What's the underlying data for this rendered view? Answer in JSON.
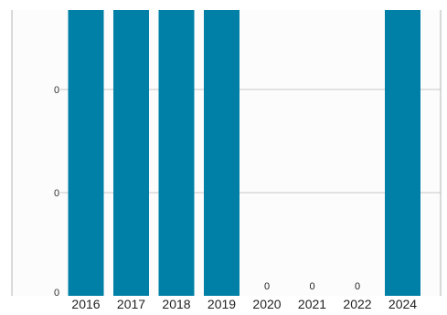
{
  "chart_data": {
    "type": "bar",
    "categories": [
      "2016",
      "2017",
      "2018",
      "2019",
      "2020",
      "2021",
      "2022",
      "2024"
    ],
    "values": [
      1,
      1,
      1,
      1,
      0,
      0,
      0,
      1
    ],
    "data_labels": [
      "",
      "",
      "",
      "",
      "0",
      "0",
      "0",
      ""
    ],
    "y_tick_labels": [
      "0",
      "0",
      "0"
    ],
    "ylim": [
      0,
      1
    ],
    "grid": true,
    "bar_color": "#0080a6",
    "grid_color": "#c8c8c8",
    "frame_color": "#b4b4b4"
  }
}
